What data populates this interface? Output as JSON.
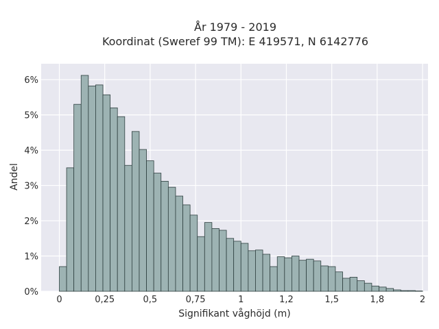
{
  "chart_data": {
    "type": "bar",
    "title": "År 1979 - 2019",
    "subtitle": "Koordinat (Sweref 99 TM): E 419571, N 6142776",
    "xlabel": "Signifikant våghöjd (m)",
    "ylabel": "Andel",
    "xlim": [
      -0.1,
      2.03
    ],
    "ylim": [
      0,
      6.45
    ],
    "bin_start": 0,
    "bin_width": 0.04,
    "x_ticks": [
      0,
      0.25,
      0.5,
      0.75,
      1,
      1.25,
      1.5,
      1.75,
      2
    ],
    "x_tick_labels": [
      "0",
      "0,25",
      "0,5",
      "0,75",
      "1",
      "1,2",
      "1,5",
      "1,8",
      "2"
    ],
    "y_ticks": [
      0,
      1,
      2,
      3,
      4,
      5,
      6
    ],
    "y_tick_labels": [
      "0%",
      "1%",
      "2%",
      "3%",
      "4%",
      "5%",
      "6%"
    ],
    "grid": true,
    "bar_color": "#9db3b3",
    "bar_edge_color": "#2e3f3f",
    "background_color": "#e8e8f0",
    "values": [
      0.7,
      3.5,
      5.3,
      6.12,
      5.82,
      5.85,
      5.57,
      5.2,
      4.95,
      3.57,
      4.53,
      4.02,
      3.7,
      3.35,
      3.12,
      2.95,
      2.7,
      2.45,
      2.16,
      1.55,
      1.95,
      1.78,
      1.73,
      1.5,
      1.42,
      1.36,
      1.15,
      1.17,
      1.05,
      0.7,
      0.98,
      0.95,
      1.0,
      0.88,
      0.91,
      0.86,
      0.72,
      0.7,
      0.55,
      0.37,
      0.4,
      0.3,
      0.23,
      0.15,
      0.12,
      0.08,
      0.04,
      0.02,
      0.02,
      0.01
    ]
  }
}
